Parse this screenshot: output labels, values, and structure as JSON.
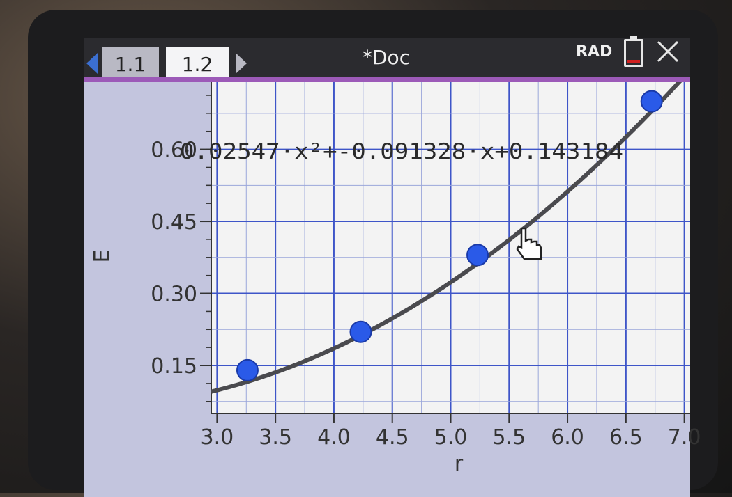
{
  "header": {
    "tabs": [
      {
        "label": "1.1",
        "active": false
      },
      {
        "label": "1.2",
        "active": true
      }
    ],
    "doc_title": "*Doc",
    "angle_mode": "RAD",
    "battery": {
      "level": 0.15,
      "color": "#d02020"
    },
    "icons": [
      "chevron-left-icon",
      "chevron-right-icon",
      "battery-icon",
      "close-icon",
      "hand-cursor-icon"
    ]
  },
  "chart_data": {
    "type": "scatter",
    "xlabel": "r",
    "ylabel": "E",
    "x_ticks": [
      "3.0",
      "3.5",
      "4.0",
      "4.5",
      "5.0",
      "5.5",
      "6.0",
      "6.5",
      "7.0"
    ],
    "y_ticks": [
      "0.15",
      "0.30",
      "0.45",
      "0.60"
    ],
    "xlim": [
      2.95,
      7.05
    ],
    "ylim": [
      0.05,
      0.74
    ],
    "grid": true,
    "points": [
      {
        "x": 3.26,
        "y": 0.14
      },
      {
        "x": 4.23,
        "y": 0.22
      },
      {
        "x": 5.23,
        "y": 0.38
      },
      {
        "x": 6.72,
        "y": 0.7
      }
    ],
    "regression": {
      "label": "0.02547·x²+-0.091328·x+0.143184",
      "a": 0.02547,
      "b": -0.091328,
      "c": 0.143184
    },
    "colors": {
      "points": "#2a5ae8",
      "curve": "#4a4a4e",
      "grid": "#3e55c8",
      "plot_bg": "#f3f3f3",
      "outer_bg": "#c3c5de"
    }
  }
}
